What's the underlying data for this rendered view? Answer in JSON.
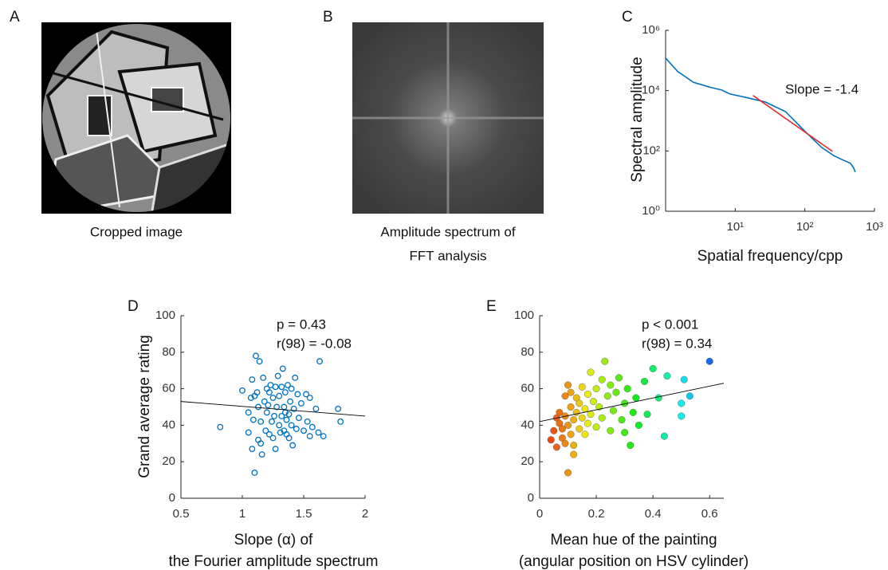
{
  "figure": {
    "panels": [
      {
        "letter": "A",
        "caption": [
          "Cropped image"
        ]
      },
      {
        "letter": "B",
        "caption": [
          "Amplitude spectrum of",
          "FFT analysis"
        ]
      },
      {
        "letter": "C"
      },
      {
        "letter": "D"
      },
      {
        "letter": "E"
      }
    ]
  },
  "chart_data": [
    {
      "type": "line",
      "xlabel": "Spatial frequency/cpp",
      "ylabel": "Spectral amplitude",
      "log_x": true,
      "log_y": true,
      "xlim": [
        1,
        1000
      ],
      "ylim": [
        1,
        1000000
      ],
      "xticks": [
        {
          "value": 10,
          "label": "10¹"
        },
        {
          "value": 100,
          "label": "10²"
        },
        {
          "value": 1000,
          "label": "10³"
        }
      ],
      "yticks": [
        {
          "value": 1,
          "label": "10⁰"
        },
        {
          "value": 100,
          "label": "10²"
        },
        {
          "value": 10000,
          "label": "10⁴"
        },
        {
          "value": 1000000,
          "label": "10⁶"
        }
      ],
      "series": [
        {
          "color": "#0072bd",
          "x": [
            1,
            1.49,
            2.5,
            4.3,
            6.4,
            8.3,
            14,
            27,
            53,
            100,
            175,
            260,
            340,
            450,
            500,
            530
          ],
          "values": [
            120000,
            43000,
            19000,
            13000,
            10500,
            7800,
            6000,
            4200,
            2000,
            450,
            130,
            70,
            52,
            39,
            28,
            20
          ]
        },
        {
          "color": "#e8262a",
          "x": [
            18,
            250
          ],
          "values": [
            6900,
            96
          ]
        }
      ],
      "annotations": [
        "Slope = -1.4"
      ]
    },
    {
      "type": "scatter",
      "xlabel": [
        "Slope (α) of",
        "the Fourier amplitude spectrum"
      ],
      "ylabel": "Grand average rating",
      "xlim": [
        0.5,
        2
      ],
      "ylim": [
        0,
        100
      ],
      "xticks": [
        0.5,
        1,
        1.5,
        2
      ],
      "yticks": [
        0,
        20,
        40,
        60,
        80,
        100
      ],
      "marker": "hollow",
      "color": "#0072bd",
      "x": [
        0.82,
        1.0,
        1.05,
        1.05,
        1.07,
        1.08,
        1.08,
        1.09,
        1.1,
        1.1,
        1.11,
        1.12,
        1.13,
        1.13,
        1.14,
        1.15,
        1.15,
        1.16,
        1.17,
        1.18,
        1.19,
        1.2,
        1.2,
        1.21,
        1.22,
        1.22,
        1.23,
        1.24,
        1.25,
        1.25,
        1.26,
        1.27,
        1.27,
        1.28,
        1.29,
        1.3,
        1.3,
        1.31,
        1.32,
        1.32,
        1.33,
        1.34,
        1.34,
        1.35,
        1.35,
        1.36,
        1.36,
        1.37,
        1.38,
        1.38,
        1.39,
        1.4,
        1.4,
        1.41,
        1.42,
        1.43,
        1.44,
        1.45,
        1.46,
        1.48,
        1.5,
        1.52,
        1.53,
        1.55,
        1.55,
        1.57,
        1.6,
        1.62,
        1.63,
        1.66,
        1.78,
        1.8
      ],
      "values": [
        39,
        59,
        47,
        36,
        55,
        65,
        27,
        43,
        14,
        56,
        78,
        58,
        32,
        50,
        75,
        42,
        30,
        24,
        66,
        53,
        37,
        60,
        47,
        51,
        35,
        58,
        62,
        42,
        55,
        33,
        45,
        61,
        27,
        50,
        67,
        40,
        56,
        36,
        61,
        45,
        71,
        50,
        37,
        47,
        58,
        43,
        35,
        62,
        46,
        33,
        53,
        40,
        60,
        29,
        49,
        66,
        38,
        57,
        44,
        52,
        37,
        57,
        42,
        55,
        34,
        39,
        49,
        36,
        75,
        34,
        49,
        42
      ],
      "fit": {
        "color": "#000000",
        "x": [
          0.5,
          2
        ],
        "values": [
          53,
          45
        ]
      },
      "annotations": [
        "p = 0.43",
        "r(98) = -0.08"
      ]
    },
    {
      "type": "scatter",
      "xlabel": [
        "Mean hue of the painting",
        "(angular position on HSV cylinder)"
      ],
      "ylabel": "",
      "xlim": [
        0,
        0.65
      ],
      "ylim": [
        0,
        100
      ],
      "xticks": [
        0,
        0.2,
        0.4,
        0.6
      ],
      "yticks": [
        0,
        20,
        40,
        60,
        80,
        100
      ],
      "marker": "filled",
      "color_by": "hue",
      "x": [
        0.04,
        0.05,
        0.06,
        0.06,
        0.07,
        0.07,
        0.08,
        0.08,
        0.09,
        0.09,
        0.09,
        0.1,
        0.1,
        0.1,
        0.11,
        0.11,
        0.11,
        0.12,
        0.12,
        0.12,
        0.13,
        0.13,
        0.14,
        0.14,
        0.15,
        0.15,
        0.16,
        0.16,
        0.17,
        0.17,
        0.18,
        0.18,
        0.19,
        0.2,
        0.2,
        0.21,
        0.22,
        0.22,
        0.23,
        0.24,
        0.25,
        0.25,
        0.26,
        0.27,
        0.28,
        0.29,
        0.3,
        0.3,
        0.31,
        0.32,
        0.33,
        0.34,
        0.35,
        0.37,
        0.38,
        0.4,
        0.42,
        0.44,
        0.45,
        0.5,
        0.5,
        0.51,
        0.53,
        0.6
      ],
      "values": [
        32,
        37,
        44,
        28,
        41,
        47,
        33,
        38,
        45,
        56,
        30,
        40,
        62,
        14,
        50,
        35,
        58,
        43,
        24,
        29,
        47,
        55,
        38,
        52,
        44,
        61,
        49,
        35,
        57,
        41,
        69,
        46,
        53,
        39,
        60,
        50,
        65,
        44,
        75,
        56,
        37,
        62,
        48,
        58,
        66,
        43,
        52,
        36,
        60,
        29,
        47,
        55,
        40,
        64,
        46,
        71,
        55,
        34,
        67,
        45,
        52,
        65,
        56,
        75
      ],
      "fit": {
        "color": "#000000",
        "x": [
          0,
          0.65
        ],
        "values": [
          42,
          63
        ]
      },
      "annotations": [
        "p < 0.001",
        "r(98) = 0.34"
      ]
    }
  ]
}
